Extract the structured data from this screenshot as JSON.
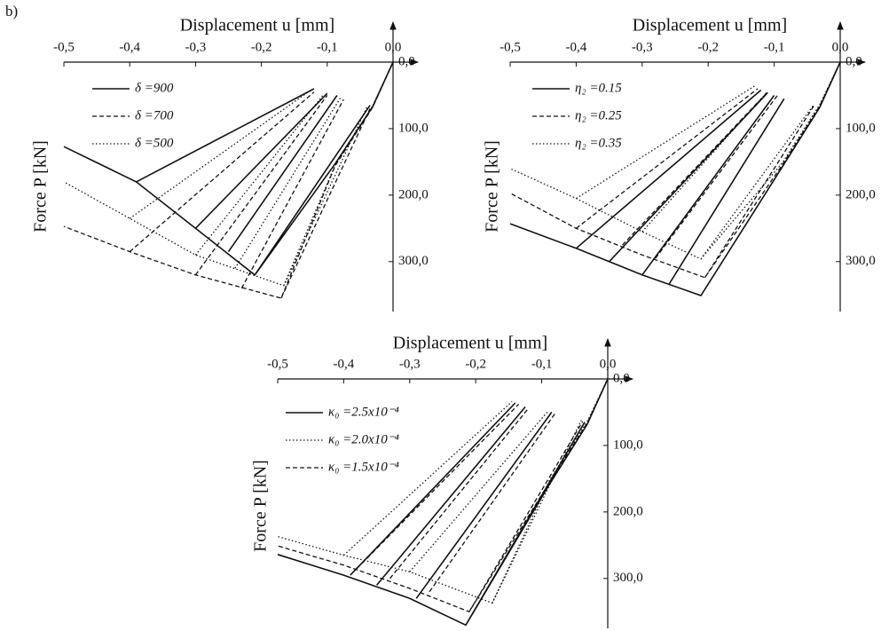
{
  "panel_label": "b)",
  "chart_data": [
    {
      "type": "line",
      "x_label": "Displacement u [mm]",
      "y_label": "Force P [kN]",
      "xlim": [
        -0.5,
        0
      ],
      "ylim": [
        0,
        375
      ],
      "xticks": [
        {
          "value": -0.5,
          "label": "-0,5"
        },
        {
          "value": -0.4,
          "label": "-0,4"
        },
        {
          "value": -0.3,
          "label": "-0,3"
        },
        {
          "value": -0.2,
          "label": "-0,2"
        },
        {
          "value": -0.1,
          "label": "-0,1"
        },
        {
          "value": 0,
          "label": "0,0"
        }
      ],
      "yticks": [
        {
          "value": 0,
          "label": "0,0"
        },
        {
          "value": 100,
          "label": "100,0"
        },
        {
          "value": 200,
          "label": "200,0"
        },
        {
          "value": 300,
          "label": "300,0"
        }
      ],
      "series": [
        {
          "name": "δ =900",
          "color": "#111111",
          "dash": "solid",
          "x": [
            0,
            -0.031,
            -0.088,
            -0.21,
            -0.3,
            -0.39,
            -0.5,
            null,
            -0.39,
            -0.12,
            null,
            -0.3,
            -0.1,
            null,
            -0.25,
            -0.085,
            null,
            -0.21,
            -0.035
          ],
          "values": [
            0,
            67,
            153,
            320,
            250,
            180,
            127,
            null,
            180,
            40,
            null,
            250,
            47,
            null,
            285,
            50,
            null,
            320,
            65
          ]
        },
        {
          "name": "δ =700",
          "color": "#111111",
          "dash": "dashed",
          "x": [
            0,
            -0.031,
            -0.088,
            -0.17,
            -0.3,
            -0.4,
            -0.5,
            null,
            -0.4,
            -0.12,
            null,
            -0.3,
            -0.1,
            null,
            -0.23,
            -0.075,
            null,
            -0.17,
            -0.035
          ],
          "values": [
            0,
            68,
            156,
            355,
            320,
            285,
            247,
            null,
            285,
            45,
            null,
            320,
            50,
            null,
            340,
            56,
            null,
            355,
            70
          ]
        },
        {
          "name": "δ =500",
          "color": "#111111",
          "dash": "dotted",
          "x": [
            0,
            -0.031,
            -0.088,
            -0.166,
            -0.3,
            -0.4,
            -0.5,
            null,
            -0.4,
            -0.125,
            null,
            -0.3,
            -0.105,
            null,
            -0.24,
            -0.08,
            null,
            -0.166,
            -0.04
          ],
          "values": [
            0,
            66,
            155,
            336,
            290,
            235,
            180,
            null,
            235,
            42,
            null,
            290,
            48,
            null,
            310,
            54,
            null,
            336,
            68
          ]
        }
      ]
    },
    {
      "type": "line",
      "x_label": "Displacement u [mm]",
      "y_label": "Force P [kN]",
      "xlim": [
        -0.5,
        0
      ],
      "ylim": [
        0,
        375
      ],
      "xticks": [
        {
          "value": -0.5,
          "label": "-0,5"
        },
        {
          "value": -0.4,
          "label": "-0,4"
        },
        {
          "value": -0.3,
          "label": "-0,3"
        },
        {
          "value": -0.2,
          "label": "-0,2"
        },
        {
          "value": -0.1,
          "label": "-0,1"
        },
        {
          "value": 0,
          "label": "0,0"
        }
      ],
      "yticks": [
        {
          "value": 0,
          "label": "0,0"
        },
        {
          "value": 100,
          "label": "100,0"
        },
        {
          "value": 200,
          "label": "200,0"
        },
        {
          "value": 300,
          "label": "300,0"
        }
      ],
      "series": [
        {
          "name": "η₂ =0.15",
          "color": "#111111",
          "dash": "solid",
          "x": [
            0,
            -0.031,
            -0.088,
            -0.211,
            -0.3,
            -0.4,
            -0.5,
            null,
            -0.4,
            -0.12,
            null,
            -0.35,
            -0.11,
            null,
            -0.3,
            -0.1,
            null,
            -0.26,
            -0.085
          ],
          "values": [
            0,
            68,
            158,
            351,
            320,
            280,
            243,
            null,
            280,
            42,
            null,
            300,
            46,
            null,
            320,
            50,
            null,
            335,
            55
          ]
        },
        {
          "name": "η₂ =0.25",
          "color": "#111111",
          "dash": "dashed",
          "x": [
            0,
            -0.031,
            -0.088,
            -0.205,
            -0.3,
            -0.4,
            -0.5,
            null,
            -0.4,
            -0.125,
            null,
            -0.33,
            -0.11,
            null,
            -0.28,
            -0.095,
            null,
            -0.205,
            -0.04
          ],
          "values": [
            0,
            66,
            155,
            324,
            290,
            250,
            197,
            null,
            250,
            40,
            null,
            275,
            45,
            null,
            295,
            50,
            null,
            324,
            66
          ]
        },
        {
          "name": "η₂ =0.35",
          "color": "#111111",
          "dash": "dotted",
          "x": [
            0,
            -0.031,
            -0.088,
            -0.211,
            -0.3,
            -0.4,
            -0.5,
            null,
            -0.4,
            -0.13,
            null,
            -0.3,
            -0.11,
            null,
            -0.211,
            -0.04
          ],
          "values": [
            0,
            64,
            152,
            296,
            255,
            205,
            160,
            null,
            205,
            36,
            null,
            255,
            44,
            null,
            296,
            64
          ]
        }
      ]
    },
    {
      "type": "line",
      "x_label": "Displacement u [mm]",
      "y_label": "Force P [kN]",
      "xlim": [
        -0.5,
        0
      ],
      "ylim": [
        0,
        375
      ],
      "xticks": [
        {
          "value": -0.5,
          "label": "-0,5"
        },
        {
          "value": -0.4,
          "label": "-0,4"
        },
        {
          "value": -0.3,
          "label": "-0,3"
        },
        {
          "value": -0.2,
          "label": "-0,2"
        },
        {
          "value": -0.1,
          "label": "-0,1"
        },
        {
          "value": 0,
          "label": "0,0"
        }
      ],
      "yticks": [
        {
          "value": 0,
          "label": "0,0"
        },
        {
          "value": 100,
          "label": "100,0"
        },
        {
          "value": 200,
          "label": "200,0"
        },
        {
          "value": 300,
          "label": "300,0"
        }
      ],
      "series": [
        {
          "name": "κ₀ =2.5x10⁻⁴",
          "color": "#111111",
          "dash": "solid",
          "x": [
            0,
            -0.031,
            -0.088,
            -0.215,
            -0.3,
            -0.4,
            -0.5,
            null,
            -0.39,
            -0.14,
            null,
            -0.35,
            -0.125,
            null,
            -0.29,
            -0.085,
            null,
            -0.215,
            -0.035
          ],
          "values": [
            0,
            68,
            158,
            370,
            330,
            295,
            264,
            null,
            295,
            36,
            null,
            310,
            42,
            null,
            330,
            50,
            null,
            370,
            65
          ]
        },
        {
          "name": "κ₀ =2.0x10⁻⁴",
          "color": "#111111",
          "dash": "dotted",
          "x": [
            0,
            -0.031,
            -0.088,
            -0.175,
            -0.3,
            -0.4,
            -0.5,
            null,
            -0.4,
            -0.145,
            null,
            -0.3,
            -0.09,
            null,
            -0.175,
            -0.04
          ],
          "values": [
            0,
            64,
            152,
            337,
            290,
            265,
            237,
            null,
            265,
            34,
            null,
            290,
            48,
            null,
            337,
            62
          ]
        },
        {
          "name": "κ₀ =1.5x10⁻⁴",
          "color": "#111111",
          "dash": "dashed",
          "x": [
            0,
            -0.031,
            -0.088,
            -0.21,
            -0.3,
            -0.4,
            -0.5,
            null,
            -0.38,
            -0.135,
            null,
            -0.33,
            -0.12,
            null,
            -0.27,
            -0.08,
            null,
            -0.21,
            -0.038
          ],
          "values": [
            0,
            66,
            155,
            350,
            315,
            280,
            251,
            null,
            285,
            38,
            null,
            300,
            44,
            null,
            320,
            52,
            null,
            350,
            64
          ]
        }
      ]
    }
  ]
}
